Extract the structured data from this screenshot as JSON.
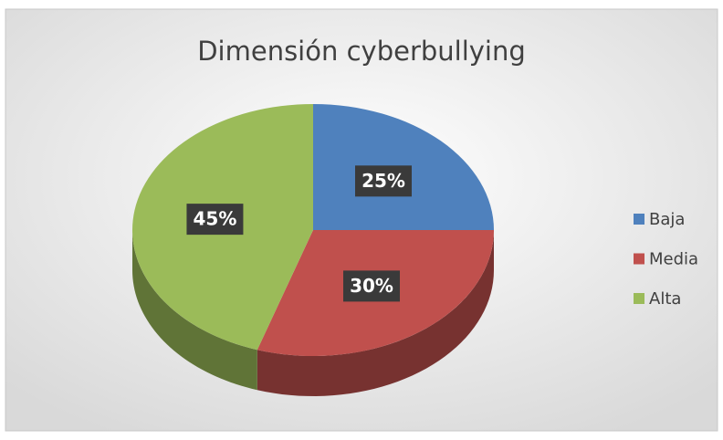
{
  "chart_data": {
    "type": "pie",
    "title": "Dimensión cyberbullying",
    "categories": [
      "Baja",
      "Media",
      "Alta"
    ],
    "values": [
      25,
      30,
      45
    ],
    "value_labels": [
      "25%",
      "30%",
      "45%"
    ],
    "colors": [
      "#4f81bd",
      "#c0504d",
      "#9bbb59"
    ],
    "legend": "right"
  }
}
